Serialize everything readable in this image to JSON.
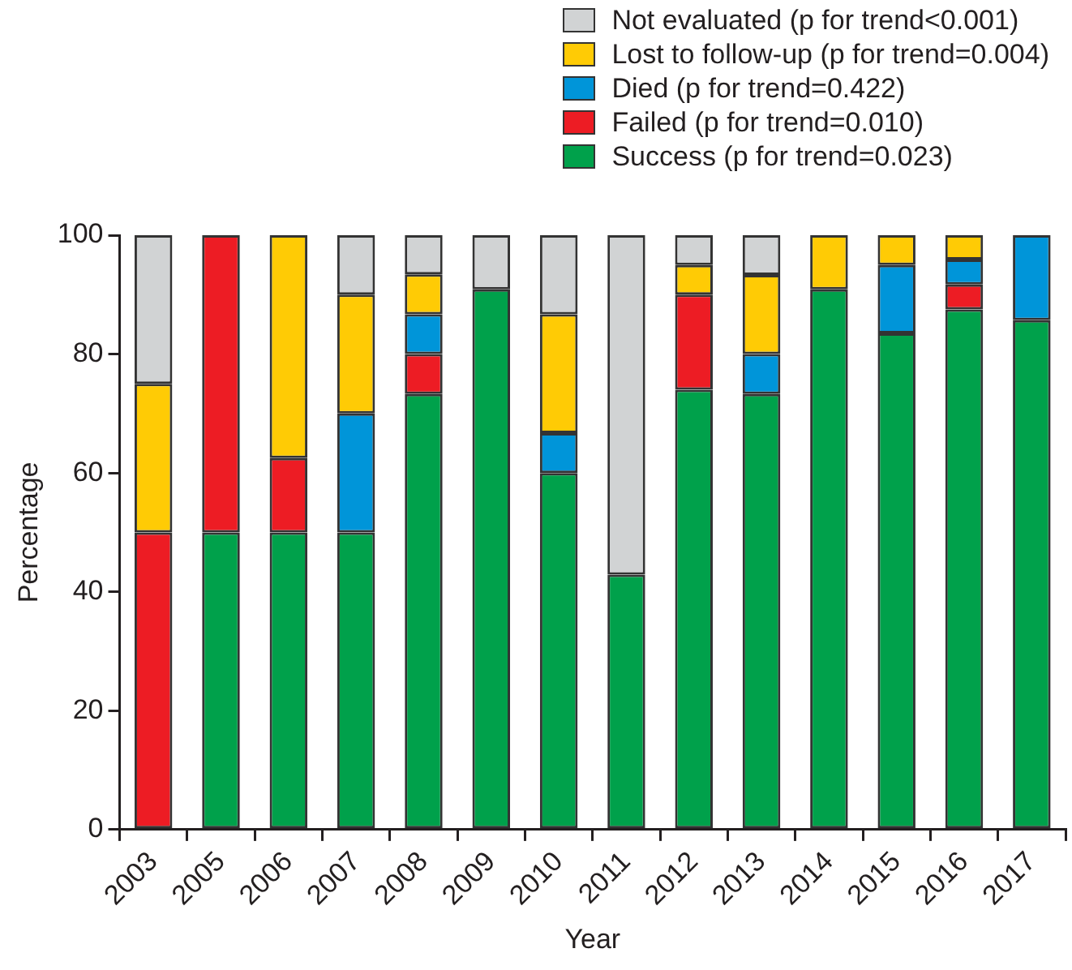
{
  "chart_data": {
    "type": "bar",
    "stacked": true,
    "xlabel": "Year",
    "ylabel": "Percentage",
    "categories": [
      "2003",
      "2005",
      "2006",
      "2007",
      "2008",
      "2009",
      "2010",
      "2011",
      "2012",
      "2013",
      "2014",
      "2015",
      "2016",
      "2017"
    ],
    "series": [
      {
        "name": "Success (p for trend=0.023)",
        "color": "#00a14b",
        "values": [
          0,
          50,
          50,
          50,
          73.3,
          90.9,
          60,
          42.9,
          74,
          73.3,
          90.9,
          83.5,
          87.5,
          85.7
        ]
      },
      {
        "name": "Failed (p for trend=0.010)",
        "color": "#ed1c24",
        "values": [
          50,
          50,
          12.5,
          0,
          6.7,
          0,
          0,
          0,
          16,
          0,
          0,
          0,
          4.2,
          0
        ]
      },
      {
        "name": "Died (p for trend=0.422)",
        "color": "#0095d9",
        "values": [
          0,
          0,
          0,
          20,
          6.7,
          0,
          6.7,
          0,
          0,
          6.7,
          0,
          11.5,
          4.2,
          14.3
        ]
      },
      {
        "name": "Lost to follow-up (p for trend=0.004)",
        "color": "#ffcb05",
        "values": [
          25,
          0,
          37.5,
          20,
          6.7,
          0,
          20,
          0,
          5,
          13.3,
          9.1,
          5,
          4.1,
          0
        ]
      },
      {
        "name": "Not evaluated (p for trend<0.001)",
        "color": "#d1d3d4",
        "values": [
          25,
          0,
          0,
          10,
          6.6,
          9.1,
          13.3,
          57.1,
          5,
          6.7,
          0,
          0,
          0,
          0
        ]
      }
    ],
    "ylim": [
      0,
      100
    ],
    "yticks": [
      0,
      20,
      40,
      60,
      80,
      100
    ],
    "grid": false,
    "legend": "top right"
  }
}
